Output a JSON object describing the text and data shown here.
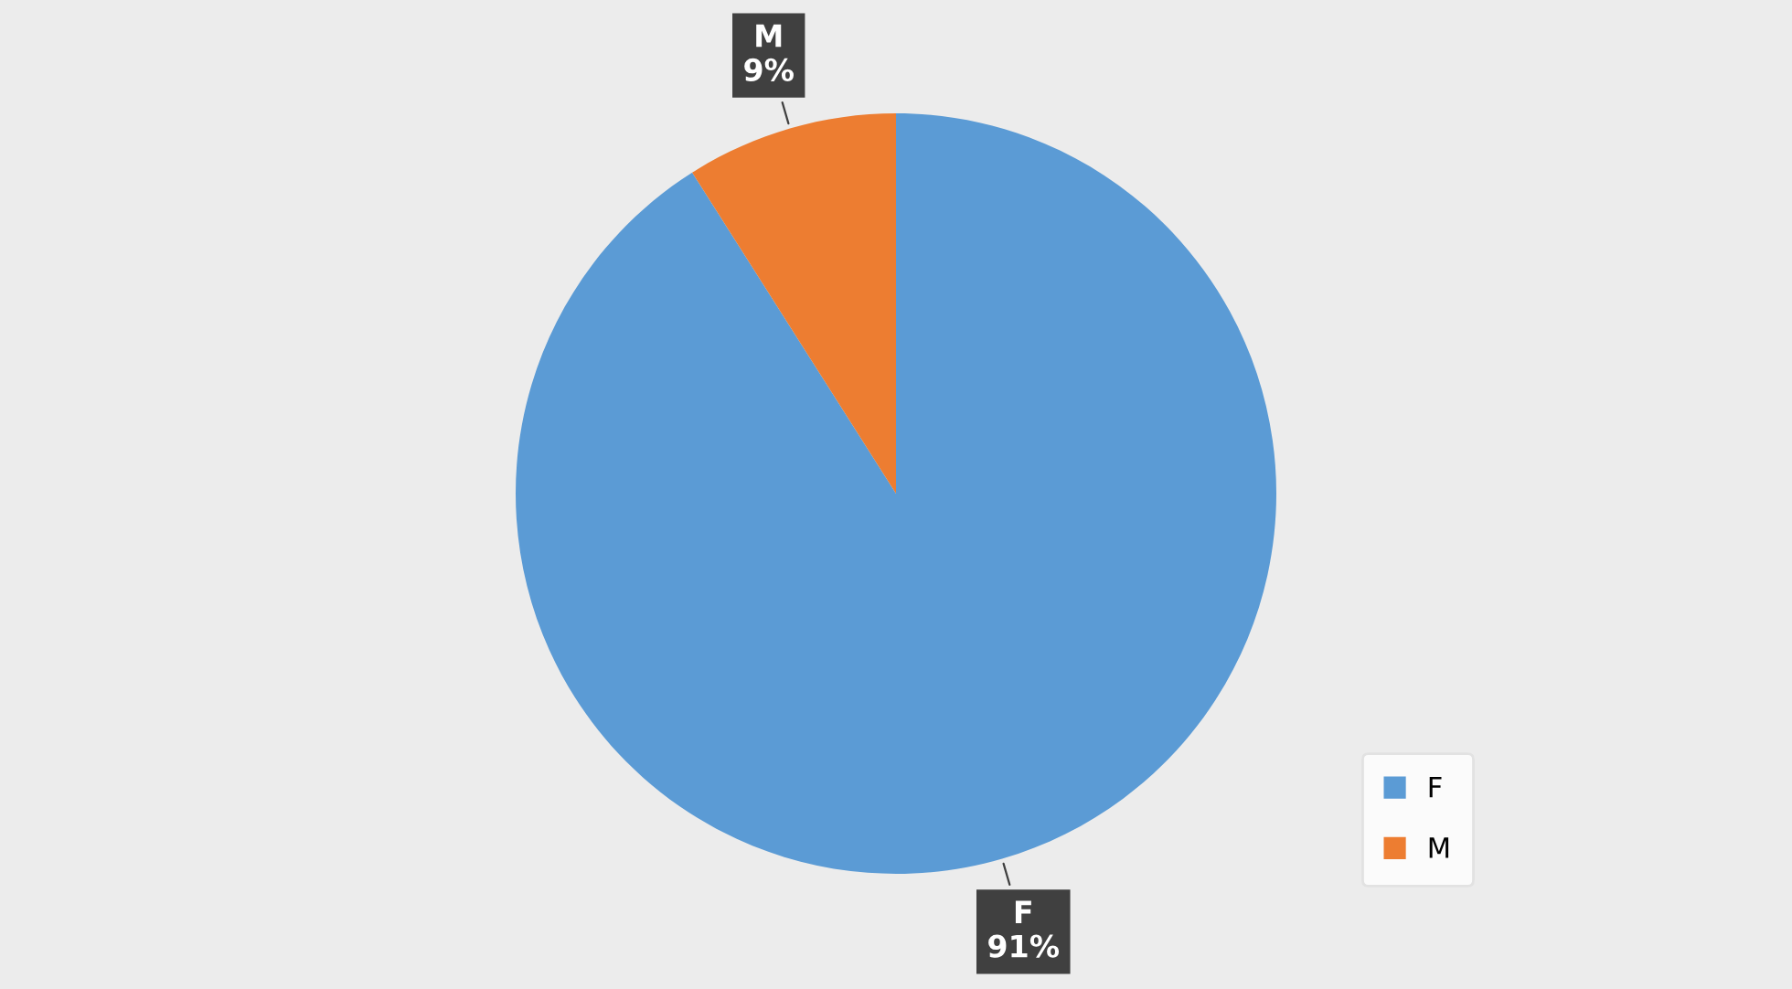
{
  "chart_data": {
    "type": "pie",
    "categories": [
      "F",
      "M"
    ],
    "values": [
      91,
      9
    ],
    "colors": [
      "#5b9bd5",
      "#ed7d31"
    ],
    "value_labels": [
      "91%",
      "9%"
    ],
    "legend": "bottom right"
  }
}
